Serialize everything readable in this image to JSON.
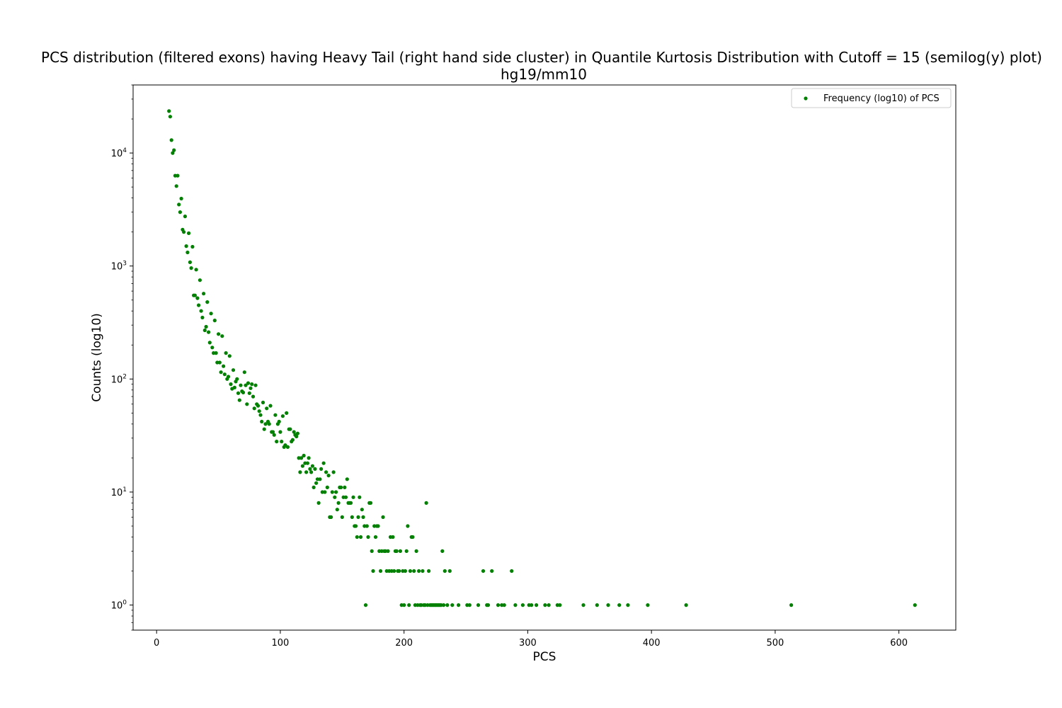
{
  "chart_data": {
    "type": "scatter",
    "title": "PCS distribution (filtered exons) having Heavy Tail (right hand side cluster) in Quantile Kurtosis Distribution with Cutoff = 15 (semilog(y) plot)",
    "subtitle": "hg19/mm10",
    "xlabel": "PCS",
    "ylabel": "Counts (log10)",
    "xlim": [
      -19,
      646
    ],
    "ylim": [
      0.6,
      40000
    ],
    "yscale": "log",
    "grid": false,
    "legend_position": "top-right",
    "x_ticks": [
      0,
      100,
      200,
      300,
      400,
      500,
      600
    ],
    "y_ticks": [
      {
        "value": 1,
        "base": "10",
        "exp": "0"
      },
      {
        "value": 10,
        "base": "10",
        "exp": "1"
      },
      {
        "value": 100,
        "base": "10",
        "exp": "2"
      },
      {
        "value": 1000,
        "base": "10",
        "exp": "3"
      },
      {
        "value": 10000,
        "base": "10",
        "exp": "4"
      }
    ],
    "marker_color": "#008000",
    "series": [
      {
        "name": "Frequency (log10) of PCS",
        "points": [
          [
            10,
            23500
          ],
          [
            11,
            21000
          ],
          [
            12,
            13000
          ],
          [
            13,
            10000
          ],
          [
            14,
            10600
          ],
          [
            15,
            6300
          ],
          [
            16,
            5100
          ],
          [
            17,
            6300
          ],
          [
            18,
            3500
          ],
          [
            19,
            3000
          ],
          [
            20,
            3950
          ],
          [
            21,
            2100
          ],
          [
            22,
            2000
          ],
          [
            23,
            2750
          ],
          [
            24,
            1500
          ],
          [
            25,
            1320
          ],
          [
            26,
            1950
          ],
          [
            27,
            1080
          ],
          [
            28,
            960
          ],
          [
            29,
            1480
          ],
          [
            30,
            550
          ],
          [
            31,
            550
          ],
          [
            32,
            930
          ],
          [
            33,
            520
          ],
          [
            34,
            450
          ],
          [
            35,
            750
          ],
          [
            36,
            400
          ],
          [
            37,
            350
          ],
          [
            38,
            570
          ],
          [
            39,
            270
          ],
          [
            40,
            290
          ],
          [
            41,
            480
          ],
          [
            42,
            260
          ],
          [
            43,
            210
          ],
          [
            44,
            380
          ],
          [
            45,
            190
          ],
          [
            46,
            170
          ],
          [
            47,
            330
          ],
          [
            48,
            170
          ],
          [
            49,
            140
          ],
          [
            50,
            250
          ],
          [
            51,
            140
          ],
          [
            52,
            115
          ],
          [
            53,
            240
          ],
          [
            54,
            130
          ],
          [
            55,
            110
          ],
          [
            56,
            170
          ],
          [
            57,
            100
          ],
          [
            58,
            105
          ],
          [
            59,
            160
          ],
          [
            60,
            90
          ],
          [
            61,
            82
          ],
          [
            62,
            120
          ],
          [
            63,
            84
          ],
          [
            64,
            95
          ],
          [
            65,
            100
          ],
          [
            66,
            75
          ],
          [
            67,
            65
          ],
          [
            68,
            88
          ],
          [
            69,
            78
          ],
          [
            70,
            76
          ],
          [
            71,
            115
          ],
          [
            72,
            88
          ],
          [
            73,
            60
          ],
          [
            74,
            92
          ],
          [
            75,
            75
          ],
          [
            76,
            83
          ],
          [
            77,
            90
          ],
          [
            78,
            70
          ],
          [
            79,
            55
          ],
          [
            80,
            88
          ],
          [
            81,
            60
          ],
          [
            82,
            58
          ],
          [
            83,
            52
          ],
          [
            84,
            48
          ],
          [
            85,
            42
          ],
          [
            86,
            62
          ],
          [
            87,
            36
          ],
          [
            88,
            40
          ],
          [
            89,
            55
          ],
          [
            90,
            42
          ],
          [
            91,
            40
          ],
          [
            92,
            58
          ],
          [
            93,
            34
          ],
          [
            94,
            34
          ],
          [
            95,
            32
          ],
          [
            96,
            48
          ],
          [
            97,
            28
          ],
          [
            98,
            40
          ],
          [
            99,
            42
          ],
          [
            100,
            34
          ],
          [
            101,
            28
          ],
          [
            102,
            47
          ],
          [
            103,
            25
          ],
          [
            104,
            26
          ],
          [
            105,
            50
          ],
          [
            106,
            25
          ],
          [
            107,
            36
          ],
          [
            108,
            36
          ],
          [
            109,
            28
          ],
          [
            110,
            29
          ],
          [
            111,
            34
          ],
          [
            112,
            32
          ],
          [
            113,
            31
          ],
          [
            114,
            33
          ],
          [
            115,
            20
          ],
          [
            116,
            15
          ],
          [
            117,
            20
          ],
          [
            118,
            17
          ],
          [
            119,
            21
          ],
          [
            120,
            18
          ],
          [
            121,
            15
          ],
          [
            122,
            18
          ],
          [
            123,
            20
          ],
          [
            124,
            16
          ],
          [
            125,
            15
          ],
          [
            126,
            17
          ],
          [
            127,
            11
          ],
          [
            128,
            16
          ],
          [
            129,
            12
          ],
          [
            130,
            13
          ],
          [
            131,
            8
          ],
          [
            132,
            13
          ],
          [
            133,
            16
          ],
          [
            134,
            10
          ],
          [
            135,
            18
          ],
          [
            136,
            10
          ],
          [
            137,
            15
          ],
          [
            138,
            11
          ],
          [
            139,
            14
          ],
          [
            140,
            6
          ],
          [
            141,
            6
          ],
          [
            142,
            10
          ],
          [
            143,
            15
          ],
          [
            144,
            9
          ],
          [
            145,
            10
          ],
          [
            146,
            7
          ],
          [
            147,
            8
          ],
          [
            148,
            11
          ],
          [
            149,
            11
          ],
          [
            150,
            6
          ],
          [
            151,
            9
          ],
          [
            152,
            11
          ],
          [
            153,
            9
          ],
          [
            154,
            13
          ],
          [
            155,
            8
          ],
          [
            156,
            8
          ],
          [
            157,
            8
          ],
          [
            158,
            6
          ],
          [
            159,
            9
          ],
          [
            160,
            5
          ],
          [
            161,
            5
          ],
          [
            162,
            4
          ],
          [
            163,
            6
          ],
          [
            164,
            9
          ],
          [
            165,
            4
          ],
          [
            166,
            7
          ],
          [
            167,
            6
          ],
          [
            168,
            5
          ],
          [
            169,
            1
          ],
          [
            170,
            5
          ],
          [
            171,
            4
          ],
          [
            172,
            8
          ],
          [
            173,
            8
          ],
          [
            174,
            3
          ],
          [
            175,
            2
          ],
          [
            176,
            5
          ],
          [
            177,
            4
          ],
          [
            178,
            5
          ],
          [
            179,
            5
          ],
          [
            180,
            3
          ],
          [
            181,
            2
          ],
          [
            182,
            3
          ],
          [
            183,
            6
          ],
          [
            184,
            3
          ],
          [
            185,
            3
          ],
          [
            186,
            2
          ],
          [
            187,
            3
          ],
          [
            188,
            2
          ],
          [
            189,
            4
          ],
          [
            190,
            2
          ],
          [
            191,
            4
          ],
          [
            192,
            2
          ],
          [
            193,
            3
          ],
          [
            194,
            3
          ],
          [
            195,
            2
          ],
          [
            196,
            2
          ],
          [
            197,
            3
          ],
          [
            198,
            1
          ],
          [
            199,
            2
          ],
          [
            200,
            1
          ],
          [
            201,
            2
          ],
          [
            202,
            3
          ],
          [
            203,
            5
          ],
          [
            204,
            1
          ],
          [
            205,
            2
          ],
          [
            206,
            4
          ],
          [
            207,
            4
          ],
          [
            208,
            2
          ],
          [
            209,
            1
          ],
          [
            210,
            3
          ],
          [
            211,
            1
          ],
          [
            212,
            2
          ],
          [
            213,
            1
          ],
          [
            214,
            1
          ],
          [
            215,
            2
          ],
          [
            216,
            1
          ],
          [
            217,
            1
          ],
          [
            218,
            8
          ],
          [
            219,
            1
          ],
          [
            220,
            2
          ],
          [
            221,
            1
          ],
          [
            222,
            1
          ],
          [
            223,
            1
          ],
          [
            224,
            1
          ],
          [
            225,
            1
          ],
          [
            226,
            1
          ],
          [
            227,
            1
          ],
          [
            228,
            1
          ],
          [
            229,
            1
          ],
          [
            230,
            1
          ],
          [
            231,
            3
          ],
          [
            232,
            1
          ],
          [
            233,
            2
          ],
          [
            235,
            1
          ],
          [
            237,
            2
          ],
          [
            239,
            1
          ],
          [
            244,
            1
          ],
          [
            251,
            1
          ],
          [
            253,
            1
          ],
          [
            260,
            1
          ],
          [
            264,
            2
          ],
          [
            267,
            1
          ],
          [
            268,
            1
          ],
          [
            271,
            2
          ],
          [
            276,
            1
          ],
          [
            279,
            1
          ],
          [
            281,
            1
          ],
          [
            287,
            2
          ],
          [
            290,
            1
          ],
          [
            296,
            1
          ],
          [
            301,
            1
          ],
          [
            303,
            1
          ],
          [
            307,
            1
          ],
          [
            314,
            1
          ],
          [
            317,
            1
          ],
          [
            324,
            1
          ],
          [
            326,
            1
          ],
          [
            345,
            1
          ],
          [
            356,
            1
          ],
          [
            365,
            1
          ],
          [
            374,
            1
          ],
          [
            381,
            1
          ],
          [
            397,
            1
          ],
          [
            428,
            1
          ],
          [
            513,
            1
          ],
          [
            613,
            1
          ]
        ]
      }
    ]
  }
}
